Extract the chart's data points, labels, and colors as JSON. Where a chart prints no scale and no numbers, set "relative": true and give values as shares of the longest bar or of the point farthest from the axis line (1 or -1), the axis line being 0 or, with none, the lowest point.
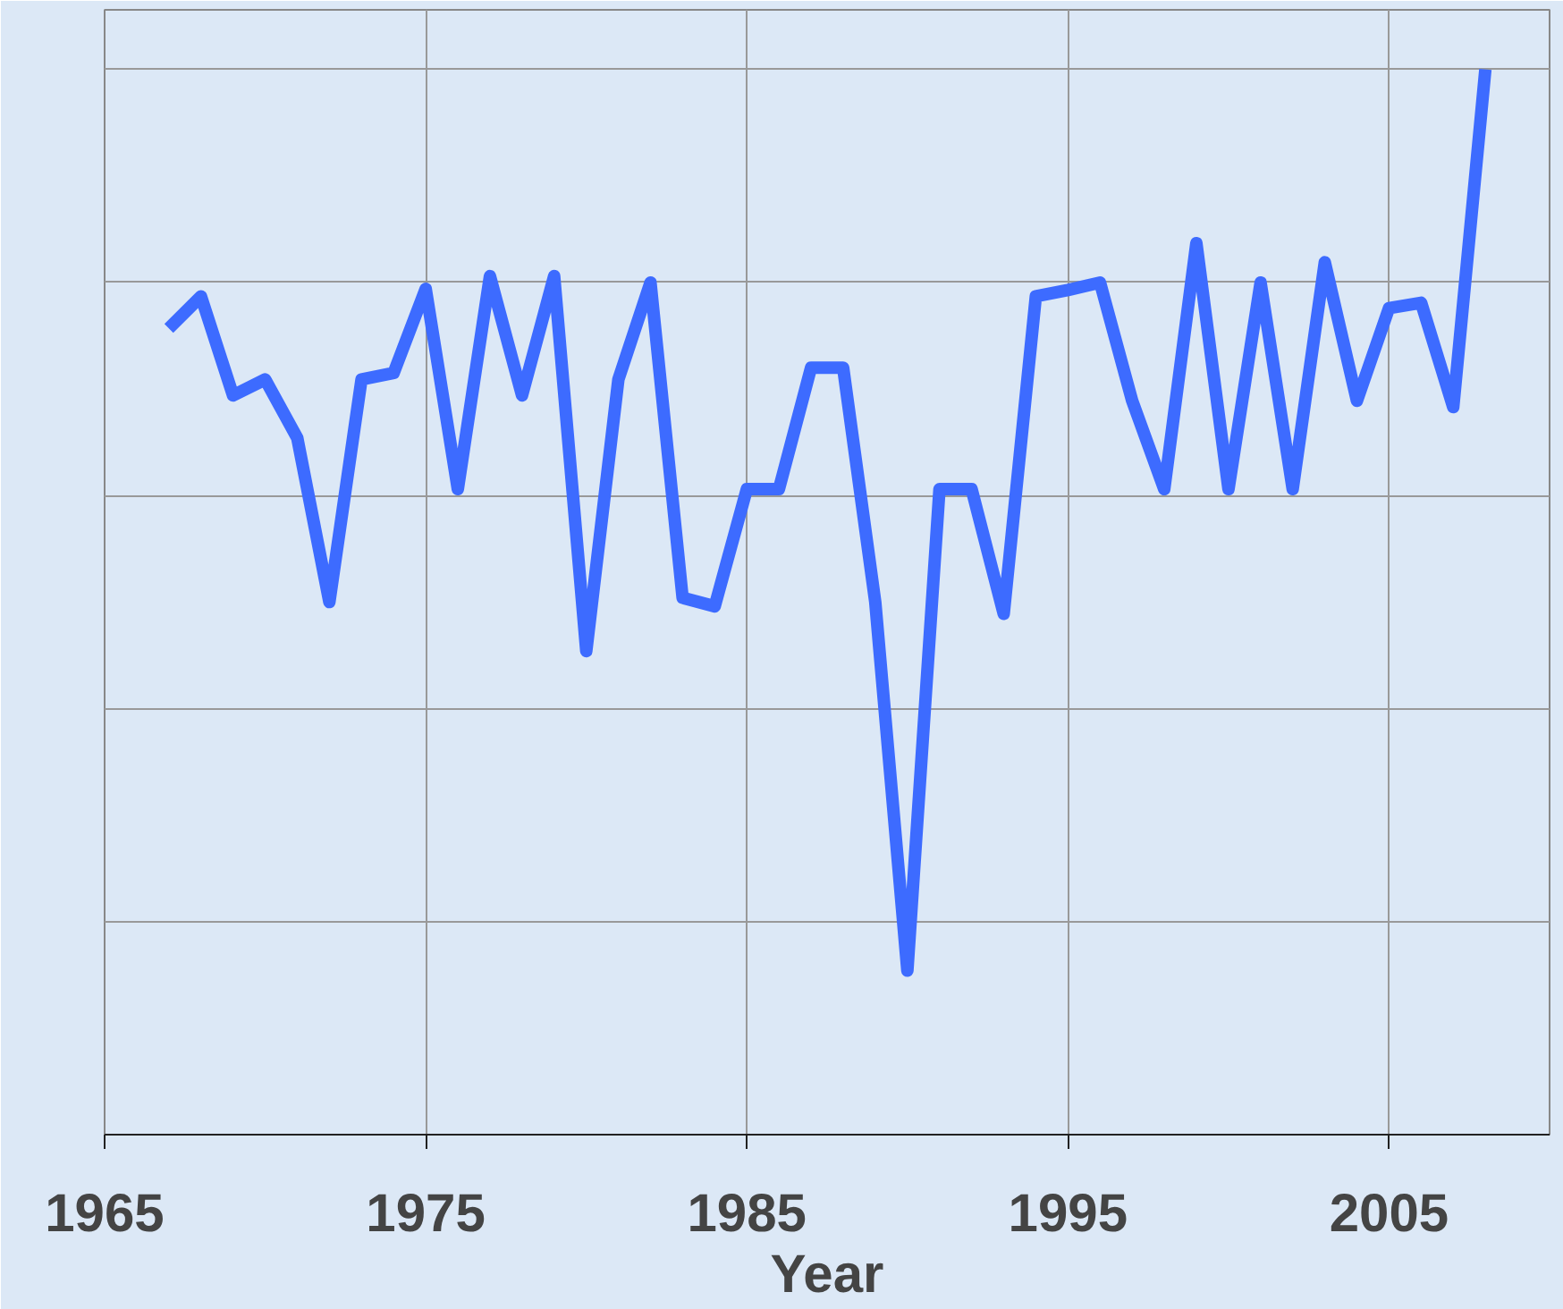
{
  "chart_data": {
    "type": "line",
    "xlabel": "Year",
    "relative": true,
    "color": "#3d6bff",
    "grid": true,
    "x": [
      1967,
      1968,
      1969,
      1970,
      1971,
      1972,
      1973,
      1974,
      1975,
      1976,
      1977,
      1978,
      1979,
      1980,
      1981,
      1982,
      1983,
      1984,
      1985,
      1986,
      1987,
      1988,
      1989,
      1990,
      1991,
      1992,
      1993,
      1994,
      1995,
      1996,
      1997,
      1998,
      1999,
      2000,
      2001,
      2002,
      2003,
      2004,
      2005,
      2006,
      2007,
      2008
    ],
    "values": [
      0.757,
      0.787,
      0.694,
      0.709,
      0.654,
      0.5,
      0.709,
      0.715,
      0.794,
      0.606,
      0.806,
      0.694,
      0.806,
      0.454,
      0.709,
      0.8,
      0.504,
      0.496,
      0.606,
      0.606,
      0.72,
      0.72,
      0.5,
      0.154,
      0.606,
      0.606,
      0.489,
      0.787,
      0.793,
      0.8,
      0.689,
      0.606,
      0.837,
      0.606,
      0.8,
      0.606,
      0.819,
      0.689,
      0.776,
      0.781,
      0.683,
      1
    ],
    "xlim": [
      1965,
      2010
    ],
    "xticks": [
      1965,
      1975,
      1985,
      1995,
      2005
    ]
  }
}
